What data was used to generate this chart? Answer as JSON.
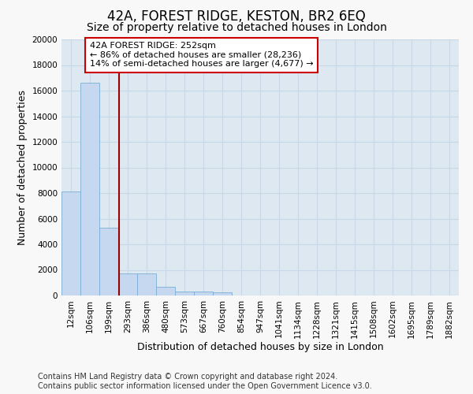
{
  "title": "42A, FOREST RIDGE, KESTON, BR2 6EQ",
  "subtitle": "Size of property relative to detached houses in London",
  "xlabel": "Distribution of detached houses by size in London",
  "ylabel": "Number of detached properties",
  "bar_labels": [
    "12sqm",
    "106sqm",
    "199sqm",
    "293sqm",
    "386sqm",
    "480sqm",
    "573sqm",
    "667sqm",
    "760sqm",
    "854sqm",
    "947sqm",
    "1041sqm",
    "1134sqm",
    "1228sqm",
    "1321sqm",
    "1415sqm",
    "1508sqm",
    "1602sqm",
    "1695sqm",
    "1789sqm",
    "1882sqm"
  ],
  "bar_heights": [
    8100,
    16600,
    5300,
    1750,
    1750,
    700,
    330,
    280,
    220,
    0,
    0,
    0,
    0,
    0,
    0,
    0,
    0,
    0,
    0,
    0,
    0
  ],
  "bar_color": "#c5d8ef",
  "bar_edge_color": "#7aadd4",
  "vline_x": 2.55,
  "vline_color": "#990000",
  "annotation_text": "42A FOREST RIDGE: 252sqm\n← 86% of detached houses are smaller (28,236)\n14% of semi-detached houses are larger (4,677) →",
  "annotation_box_color": "#ffffff",
  "annotation_box_edge_color": "#cc0000",
  "ylim": [
    0,
    20000
  ],
  "yticks": [
    0,
    2000,
    4000,
    6000,
    8000,
    10000,
    12000,
    14000,
    16000,
    18000,
    20000
  ],
  "footnote": "Contains HM Land Registry data © Crown copyright and database right 2024.\nContains public sector information licensed under the Open Government Licence v3.0.",
  "fig_bg_color": "#f8f8f8",
  "plot_bg_color": "#dde8f0",
  "grid_color": "#c8d8e8",
  "title_fontsize": 12,
  "subtitle_fontsize": 10,
  "label_fontsize": 9,
  "tick_fontsize": 7.5,
  "annotation_fontsize": 8,
  "footnote_fontsize": 7
}
